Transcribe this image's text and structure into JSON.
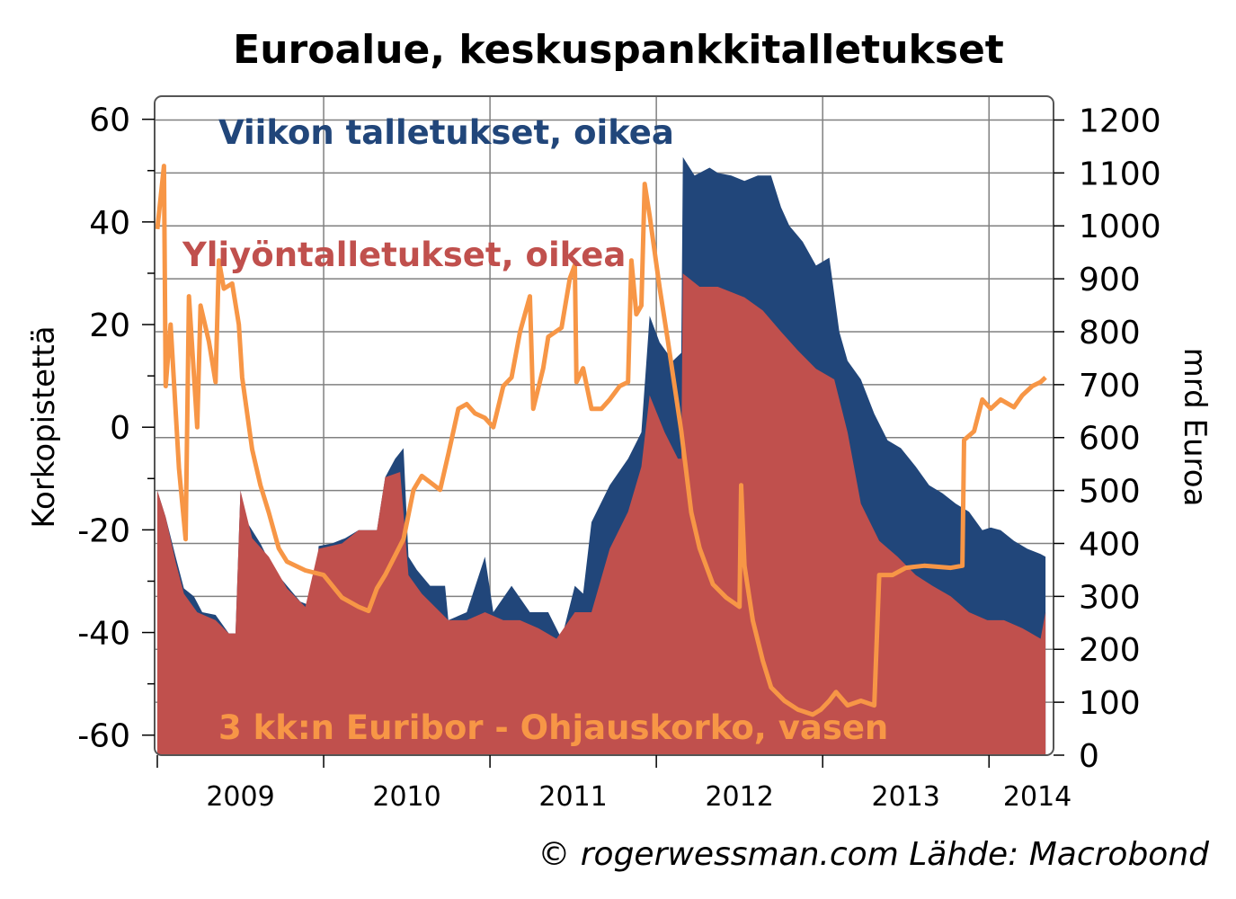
{
  "chart_data": {
    "type": "area",
    "title": "Euroalue, keskuspankkitalletukset",
    "ylabel_left": "Korkopistettä",
    "ylabel_right": "mrd Euroa",
    "credit": "© rogerwessman.com Lähde: Macrobond",
    "xlim": [
      2009.0,
      2014.35
    ],
    "ylim_left": [
      -63.9,
      64.5
    ],
    "ylim_right": [
      0,
      1245
    ],
    "grid": true,
    "x_ticks": [
      2009,
      2010,
      2011,
      2012,
      2013,
      2014
    ],
    "x_tick_labels": [
      "2009",
      "2010",
      "2011",
      "2012",
      "2013",
      "2014"
    ],
    "left_ticks": [
      60,
      40,
      20,
      0,
      -20,
      -40,
      -60
    ],
    "left_tick_labels": [
      "60",
      "40",
      "20",
      "0",
      "-20",
      "-40",
      "-60"
    ],
    "right_ticks": [
      1200,
      1100,
      1000,
      900,
      800,
      700,
      600,
      500,
      400,
      300,
      200,
      100,
      0
    ],
    "right_tick_labels": [
      "1200",
      "1100",
      "1000",
      "900",
      "800",
      "700",
      "600",
      "500",
      "400",
      "300",
      "200",
      "100",
      "0"
    ],
    "colors": {
      "weekly": "#21467a",
      "overnight": "#c0504d",
      "euribor": "#f79646",
      "frame": "#555555",
      "grid": "#808080"
    },
    "series": [
      {
        "name": "Viikon talletukset, oikea",
        "axis": "right",
        "kind": "area",
        "points": [
          [
            2009.0,
            500
          ],
          [
            2009.05,
            450
          ],
          [
            2009.11,
            375
          ],
          [
            2009.16,
            315
          ],
          [
            2009.22,
            300
          ],
          [
            2009.27,
            270
          ],
          [
            2009.35,
            265
          ],
          [
            2009.43,
            230
          ],
          [
            2009.47,
            230
          ],
          [
            2009.5,
            500
          ],
          [
            2009.54,
            440
          ],
          [
            2009.62,
            400
          ],
          [
            2009.7,
            350
          ],
          [
            2009.78,
            320
          ],
          [
            2009.86,
            290
          ],
          [
            2009.94,
            280
          ],
          [
            2009.97,
            395
          ],
          [
            2010.05,
            400
          ],
          [
            2010.13,
            410
          ],
          [
            2010.21,
            425
          ],
          [
            2010.32,
            425
          ],
          [
            2010.37,
            525
          ],
          [
            2010.43,
            560
          ],
          [
            2010.48,
            580
          ],
          [
            2010.51,
            375
          ],
          [
            2010.56,
            350
          ],
          [
            2010.64,
            320
          ],
          [
            2010.73,
            320
          ],
          [
            2010.75,
            255
          ],
          [
            2010.86,
            270
          ],
          [
            2010.97,
            375
          ],
          [
            2011.02,
            270
          ],
          [
            2011.13,
            320
          ],
          [
            2011.24,
            270
          ],
          [
            2011.35,
            270
          ],
          [
            2011.43,
            220
          ],
          [
            2011.51,
            320
          ],
          [
            2011.56,
            305
          ],
          [
            2011.61,
            440
          ],
          [
            2011.72,
            510
          ],
          [
            2011.83,
            560
          ],
          [
            2011.91,
            610
          ],
          [
            2011.96,
            830
          ],
          [
            2012.02,
            780
          ],
          [
            2012.1,
            745
          ],
          [
            2012.15,
            760
          ],
          [
            2012.16,
            1130
          ],
          [
            2012.23,
            1095
          ],
          [
            2012.32,
            1110
          ],
          [
            2012.37,
            1100
          ],
          [
            2012.45,
            1095
          ],
          [
            2012.53,
            1085
          ],
          [
            2012.61,
            1095
          ],
          [
            2012.69,
            1095
          ],
          [
            2012.75,
            1035
          ],
          [
            2012.8,
            1000
          ],
          [
            2012.88,
            970
          ],
          [
            2012.96,
            925
          ],
          [
            2013.04,
            940
          ],
          [
            2013.1,
            800
          ],
          [
            2013.15,
            745
          ],
          [
            2013.23,
            710
          ],
          [
            2013.31,
            645
          ],
          [
            2013.39,
            595
          ],
          [
            2013.47,
            580
          ],
          [
            2013.56,
            545
          ],
          [
            2013.64,
            510
          ],
          [
            2013.72,
            495
          ],
          [
            2013.8,
            475
          ],
          [
            2013.88,
            460
          ],
          [
            2013.96,
            425
          ],
          [
            2014.01,
            430
          ],
          [
            2014.07,
            425
          ],
          [
            2014.15,
            405
          ],
          [
            2014.23,
            390
          ],
          [
            2014.31,
            380
          ],
          [
            2014.34,
            375
          ]
        ]
      },
      {
        "name": "Yliöntalletukset, oikea",
        "axis": "right",
        "kind": "area",
        "points": [
          [
            2009.0,
            500
          ],
          [
            2009.05,
            450
          ],
          [
            2009.11,
            365
          ],
          [
            2009.16,
            305
          ],
          [
            2009.24,
            270
          ],
          [
            2009.35,
            255
          ],
          [
            2009.43,
            230
          ],
          [
            2009.47,
            230
          ],
          [
            2009.5,
            500
          ],
          [
            2009.57,
            410
          ],
          [
            2009.67,
            375
          ],
          [
            2009.78,
            315
          ],
          [
            2009.89,
            280
          ],
          [
            2009.97,
            390
          ],
          [
            2010.11,
            400
          ],
          [
            2010.21,
            425
          ],
          [
            2010.32,
            425
          ],
          [
            2010.37,
            525
          ],
          [
            2010.46,
            535
          ],
          [
            2010.51,
            340
          ],
          [
            2010.59,
            305
          ],
          [
            2010.75,
            255
          ],
          [
            2010.86,
            255
          ],
          [
            2010.97,
            270
          ],
          [
            2011.08,
            255
          ],
          [
            2011.18,
            255
          ],
          [
            2011.29,
            240
          ],
          [
            2011.4,
            220
          ],
          [
            2011.51,
            270
          ],
          [
            2011.61,
            270
          ],
          [
            2011.72,
            390
          ],
          [
            2011.83,
            460
          ],
          [
            2011.91,
            545
          ],
          [
            2011.96,
            680
          ],
          [
            2012.05,
            610
          ],
          [
            2012.13,
            560
          ],
          [
            2012.15,
            560
          ],
          [
            2012.16,
            910
          ],
          [
            2012.26,
            885
          ],
          [
            2012.37,
            885
          ],
          [
            2012.53,
            865
          ],
          [
            2012.64,
            840
          ],
          [
            2012.75,
            800
          ],
          [
            2012.85,
            765
          ],
          [
            2012.96,
            730
          ],
          [
            2013.07,
            710
          ],
          [
            2013.15,
            610
          ],
          [
            2013.23,
            475
          ],
          [
            2013.34,
            405
          ],
          [
            2013.45,
            375
          ],
          [
            2013.56,
            340
          ],
          [
            2013.66,
            320
          ],
          [
            2013.77,
            300
          ],
          [
            2013.88,
            270
          ],
          [
            2013.99,
            255
          ],
          [
            2014.09,
            255
          ],
          [
            2014.2,
            240
          ],
          [
            2014.31,
            220
          ],
          [
            2014.34,
            270
          ]
        ]
      },
      {
        "name": "3 kk:n Euribor - Ohjauskorko, vasen",
        "axis": "left",
        "kind": "line",
        "points": [
          [
            2009.0,
            38.6
          ],
          [
            2009.04,
            50.9
          ],
          [
            2009.05,
            8.0
          ],
          [
            2009.08,
            20.0
          ],
          [
            2009.13,
            -8.0
          ],
          [
            2009.17,
            -21.8
          ],
          [
            2009.19,
            25.5
          ],
          [
            2009.24,
            0.0
          ],
          [
            2009.26,
            23.7
          ],
          [
            2009.31,
            16.7
          ],
          [
            2009.35,
            8.8
          ],
          [
            2009.37,
            32.5
          ],
          [
            2009.4,
            27.0
          ],
          [
            2009.45,
            28.0
          ],
          [
            2009.49,
            20.0
          ],
          [
            2009.51,
            9.7
          ],
          [
            2009.57,
            -4.3
          ],
          [
            2009.62,
            -11.3
          ],
          [
            2009.67,
            -16.6
          ],
          [
            2009.73,
            -23.6
          ],
          [
            2009.78,
            -26.2
          ],
          [
            2009.89,
            -27.9
          ],
          [
            2010.0,
            -28.8
          ],
          [
            2010.11,
            -33.2
          ],
          [
            2010.21,
            -35.0
          ],
          [
            2010.27,
            -35.8
          ],
          [
            2010.32,
            -31.4
          ],
          [
            2010.37,
            -28.8
          ],
          [
            2010.48,
            -21.8
          ],
          [
            2010.54,
            -12.2
          ],
          [
            2010.59,
            -9.5
          ],
          [
            2010.7,
            -12.2
          ],
          [
            2010.75,
            -5.2
          ],
          [
            2010.81,
            3.6
          ],
          [
            2010.86,
            4.5
          ],
          [
            2010.91,
            2.7
          ],
          [
            2010.97,
            1.8
          ],
          [
            2011.02,
            0.0
          ],
          [
            2011.08,
            8.0
          ],
          [
            2011.13,
            9.7
          ],
          [
            2011.18,
            18.5
          ],
          [
            2011.24,
            25.5
          ],
          [
            2011.26,
            3.6
          ],
          [
            2011.32,
            11.5
          ],
          [
            2011.35,
            17.6
          ],
          [
            2011.43,
            19.4
          ],
          [
            2011.48,
            29.0
          ],
          [
            2011.51,
            31.6
          ],
          [
            2011.52,
            8.8
          ],
          [
            2011.56,
            11.5
          ],
          [
            2011.61,
            3.6
          ],
          [
            2011.67,
            3.6
          ],
          [
            2011.72,
            5.4
          ],
          [
            2011.78,
            8.0
          ],
          [
            2011.83,
            8.8
          ],
          [
            2011.85,
            32.5
          ],
          [
            2011.88,
            22.0
          ],
          [
            2011.91,
            23.7
          ],
          [
            2011.93,
            47.4
          ],
          [
            2011.96,
            41.2
          ],
          [
            2012.02,
            27.2
          ],
          [
            2012.07,
            16.7
          ],
          [
            2012.15,
            -0.8
          ],
          [
            2012.21,
            -16.6
          ],
          [
            2012.26,
            -23.6
          ],
          [
            2012.34,
            -30.6
          ],
          [
            2012.42,
            -33.2
          ],
          [
            2012.5,
            -35.0
          ],
          [
            2012.51,
            -11.3
          ],
          [
            2012.53,
            -27.0
          ],
          [
            2012.58,
            -37.7
          ],
          [
            2012.64,
            -45.5
          ],
          [
            2012.69,
            -50.7
          ],
          [
            2012.77,
            -53.3
          ],
          [
            2012.85,
            -55.0
          ],
          [
            2012.94,
            -56.0
          ],
          [
            2012.99,
            -55.0
          ],
          [
            2013.04,
            -53.3
          ],
          [
            2013.08,
            -51.6
          ],
          [
            2013.15,
            -54.2
          ],
          [
            2013.23,
            -53.3
          ],
          [
            2013.31,
            -54.2
          ],
          [
            2013.34,
            -28.8
          ],
          [
            2013.42,
            -28.8
          ],
          [
            2013.5,
            -27.4
          ],
          [
            2013.61,
            -27.0
          ],
          [
            2013.77,
            -27.4
          ],
          [
            2013.84,
            -27.0
          ],
          [
            2013.85,
            -2.5
          ],
          [
            2013.91,
            -0.8
          ],
          [
            2013.96,
            5.4
          ],
          [
            2014.01,
            3.6
          ],
          [
            2014.07,
            5.4
          ],
          [
            2014.15,
            3.9
          ],
          [
            2014.2,
            6.2
          ],
          [
            2014.26,
            8.0
          ],
          [
            2014.31,
            8.8
          ],
          [
            2014.34,
            9.7
          ]
        ]
      }
    ],
    "annotations": {
      "weekly": "Viikon talletukset, oikea",
      "overnight": "Yliyöntalletukset, oikea",
      "euribor": "3 kk:n Euribor - Ohjauskorko, vasen"
    }
  }
}
